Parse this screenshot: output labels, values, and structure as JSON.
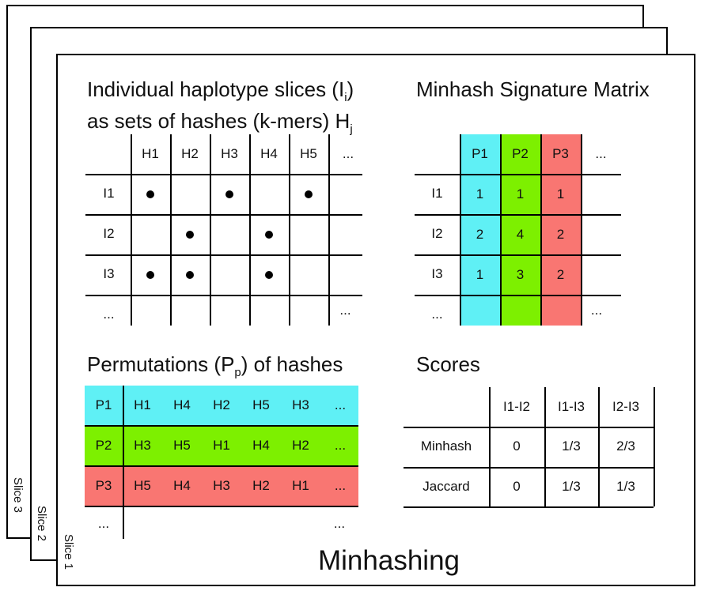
{
  "slices": [
    "Slice 3",
    "Slice 2",
    "Slice 1"
  ],
  "caption": "Minhashing",
  "haplotype_matrix": {
    "title_line1": "Individual haplotype slices (I",
    "title_sub1": "i",
    "title_end1": ")",
    "title_line2": "as sets of hashes (k-mers) H",
    "title_sub2": "j",
    "col_headers": [
      "H1",
      "H2",
      "H3",
      "H4",
      "H5",
      "..."
    ],
    "row_headers": [
      "I1",
      "I2",
      "I3",
      "..."
    ],
    "dots": [
      [
        true,
        false,
        true,
        false,
        true
      ],
      [
        false,
        true,
        false,
        true,
        false
      ],
      [
        true,
        true,
        false,
        true,
        false
      ]
    ],
    "trailing": "..."
  },
  "signature_matrix": {
    "title": "Minhash Signature Matrix",
    "col_headers": [
      "P1",
      "P2",
      "P3",
      "..."
    ],
    "row_headers": [
      "I1",
      "I2",
      "I3",
      "..."
    ],
    "values": [
      [
        "1",
        "1",
        "1"
      ],
      [
        "2",
        "4",
        "2"
      ],
      [
        "1",
        "3",
        "2"
      ]
    ],
    "trailing": "...",
    "colors": [
      "#5ff0f5",
      "#7df000",
      "#f97672"
    ]
  },
  "permutations": {
    "title_start": "Permutations (P",
    "title_sub": "p",
    "title_end": ") of hashes",
    "rows": [
      {
        "label": "P1",
        "items": [
          "H1",
          "H4",
          "H2",
          "H5",
          "H3",
          "..."
        ],
        "color": "#5ff0f5"
      },
      {
        "label": "P2",
        "items": [
          "H3",
          "H5",
          "H1",
          "H4",
          "H2",
          "..."
        ],
        "color": "#7df000"
      },
      {
        "label": "P3",
        "items": [
          "H5",
          "H4",
          "H3",
          "H2",
          "H1",
          "..."
        ],
        "color": "#f97672"
      }
    ],
    "trailing_left": "...",
    "trailing_right": "..."
  },
  "scores": {
    "title": "Scores",
    "col_headers": [
      "I1-I2",
      "I1-I3",
      "I2-I3"
    ],
    "rows": [
      {
        "label": "Minhash",
        "values": [
          "0",
          "1/3",
          "2/3"
        ]
      },
      {
        "label": "Jaccard",
        "values": [
          "0",
          "1/3",
          "1/3"
        ]
      }
    ]
  }
}
